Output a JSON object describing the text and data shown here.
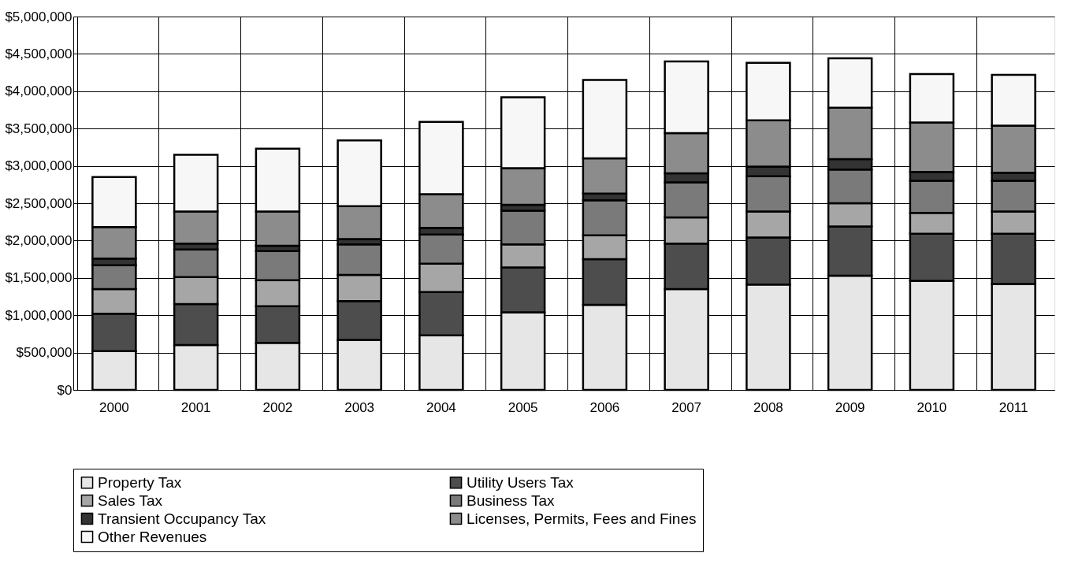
{
  "chart_data": {
    "type": "bar",
    "stacked": true,
    "categories": [
      "2000",
      "2001",
      "2002",
      "2003",
      "2004",
      "2005",
      "2006",
      "2007",
      "2008",
      "2009",
      "2010",
      "2011"
    ],
    "series": [
      {
        "name": "Property Tax",
        "color": "#e6e6e6",
        "values": [
          520000,
          600000,
          630000,
          670000,
          730000,
          1040000,
          1140000,
          1350000,
          1410000,
          1530000,
          1460000,
          1420000
        ]
      },
      {
        "name": "Utility Users Tax",
        "color": "#4d4d4d",
        "values": [
          500000,
          550000,
          490000,
          520000,
          580000,
          600000,
          610000,
          610000,
          630000,
          660000,
          630000,
          670000
        ]
      },
      {
        "name": "Sales Tax",
        "color": "#a6a6a6",
        "values": [
          330000,
          360000,
          350000,
          350000,
          380000,
          310000,
          320000,
          350000,
          350000,
          310000,
          280000,
          300000
        ]
      },
      {
        "name": "Business Tax",
        "color": "#7a7a7a",
        "values": [
          320000,
          370000,
          390000,
          410000,
          390000,
          450000,
          470000,
          470000,
          470000,
          450000,
          430000,
          410000
        ]
      },
      {
        "name": "Transient Occupancy Tax",
        "color": "#333333",
        "values": [
          90000,
          80000,
          70000,
          70000,
          90000,
          80000,
          90000,
          120000,
          130000,
          140000,
          120000,
          110000
        ]
      },
      {
        "name": "Licenses, Permits, Fees and Fines",
        "color": "#8c8c8c",
        "values": [
          420000,
          430000,
          460000,
          440000,
          450000,
          490000,
          470000,
          540000,
          620000,
          690000,
          660000,
          630000
        ]
      },
      {
        "name": "Other Revenues",
        "color": "#f7f7f7",
        "values": [
          670000,
          760000,
          840000,
          880000,
          970000,
          950000,
          1050000,
          960000,
          770000,
          660000,
          650000,
          680000
        ]
      }
    ],
    "ylim": [
      0,
      5000000
    ],
    "yticks": [
      {
        "value": 0,
        "label": "$0"
      },
      {
        "value": 500000,
        "label": "$500,000"
      },
      {
        "value": 1000000,
        "label": "$1,000,000"
      },
      {
        "value": 1500000,
        "label": "$1,500,000"
      },
      {
        "value": 2000000,
        "label": "$2,000,000"
      },
      {
        "value": 2500000,
        "label": "$2,500,000"
      },
      {
        "value": 3000000,
        "label": "$3,000,000"
      },
      {
        "value": 3500000,
        "label": "$3,500,000"
      },
      {
        "value": 4000000,
        "label": "$4,000,000"
      },
      {
        "value": 4500000,
        "label": "$4,500,000"
      },
      {
        "value": 5000000,
        "label": "$5,000,000"
      }
    ],
    "grid": true,
    "legend": "bottom"
  }
}
